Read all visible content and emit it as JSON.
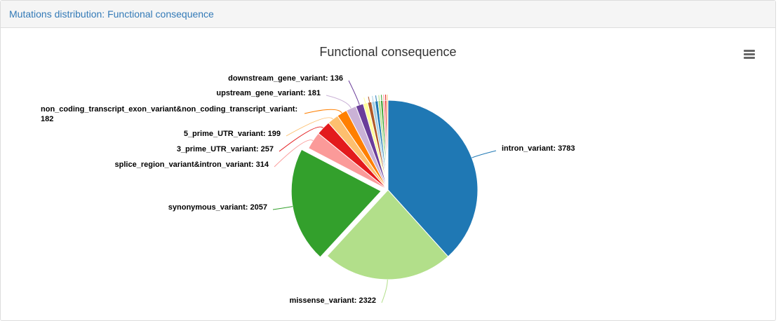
{
  "panel": {
    "heading": "Mutations distribution: Functional consequence"
  },
  "colors": {
    "heading_text": "#337ab7",
    "menu_icon": "#666666"
  },
  "icons": {
    "menu": "hamburger-menu-icon"
  },
  "chart_data": {
    "type": "pie",
    "title": "Functional consequence",
    "sliced": "synonymous_variant",
    "slices": [
      {
        "label": "intron_variant",
        "value": 3783,
        "color": "#1f78b4",
        "labeled": true
      },
      {
        "label": "missense_variant",
        "value": 2322,
        "color": "#b2df8a",
        "labeled": true
      },
      {
        "label": "synonymous_variant",
        "value": 2057,
        "color": "#33a02c",
        "labeled": true
      },
      {
        "label": "splice_region_variant&intron_variant",
        "value": 314,
        "color": "#fb9a99",
        "labeled": true
      },
      {
        "label": "3_prime_UTR_variant",
        "value": 257,
        "color": "#e31a1c",
        "labeled": true
      },
      {
        "label": "5_prime_UTR_variant",
        "value": 199,
        "color": "#fdbf6f",
        "labeled": true
      },
      {
        "label": "non_coding_transcript_exon_variant&non_coding_transcript_variant",
        "value": 182,
        "color": "#ff7f00",
        "labeled": true,
        "display": [
          "non_coding_transcript_exon_variant&non_coding_transcript_variant:",
          "182"
        ]
      },
      {
        "label": "upstream_gene_variant",
        "value": 181,
        "color": "#cab2d6",
        "labeled": true
      },
      {
        "label": "downstream_gene_variant",
        "value": 136,
        "color": "#6a3d9a",
        "labeled": true
      },
      {
        "value": 80,
        "color": "#ffff99",
        "labeled": false
      },
      {
        "value": 70,
        "color": "#b15928",
        "labeled": false
      },
      {
        "value": 60,
        "color": "#a6cee3",
        "labeled": false
      },
      {
        "value": 55,
        "color": "#1f78b4",
        "labeled": false
      },
      {
        "value": 45,
        "color": "#b2df8a",
        "labeled": false
      },
      {
        "value": 40,
        "color": "#33a02c",
        "labeled": false
      },
      {
        "value": 35,
        "color": "#fb9a99",
        "labeled": false
      },
      {
        "value": 30,
        "color": "#e31a1c",
        "labeled": false
      },
      {
        "value": 25,
        "color": "#fdbf6f",
        "labeled": false
      }
    ]
  }
}
